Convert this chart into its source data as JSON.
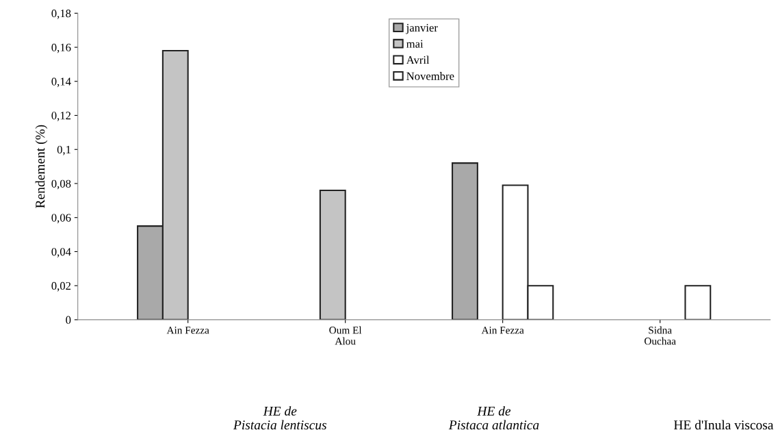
{
  "chart_data": {
    "type": "bar",
    "ylabel": "Rendement (%)",
    "categories": [
      "Ain Fezza",
      "Oum El\nAlou",
      "Ain Fezza",
      "Sidna\nOuchaa"
    ],
    "series": [
      {
        "name": "janvier",
        "color": "#a9a9a9",
        "values": [
          0.055,
          null,
          0.092,
          null
        ]
      },
      {
        "name": "mai",
        "color": "#c4c4c4",
        "values": [
          0.158,
          0.076,
          null,
          null
        ]
      },
      {
        "name": "Avril",
        "color": "#ffffff",
        "values": [
          null,
          null,
          0.079,
          null
        ]
      },
      {
        "name": "Novembre",
        "color": "#ffffff",
        "values": [
          null,
          null,
          0.02,
          0.02
        ]
      }
    ],
    "ylim": [
      0,
      0.18
    ],
    "yticks": [
      {
        "value": 0,
        "label": "0"
      },
      {
        "value": 0.02,
        "label": "0,02"
      },
      {
        "value": 0.04,
        "label": "0,04"
      },
      {
        "value": 0.06,
        "label": "0,06"
      },
      {
        "value": 0.08,
        "label": "0,08"
      },
      {
        "value": 0.1,
        "label": "0,1"
      },
      {
        "value": 0.12,
        "label": "0,12"
      },
      {
        "value": 0.14,
        "label": "0,14"
      },
      {
        "value": 0.16,
        "label": "0,16"
      },
      {
        "value": 0.18,
        "label": "0,18"
      }
    ],
    "grid": false,
    "legend": "top",
    "annotations": [
      "HE de\nPistacia lentiscus",
      "HE de\nPistaca atlantica",
      "HE d'Inula viscosa"
    ]
  }
}
